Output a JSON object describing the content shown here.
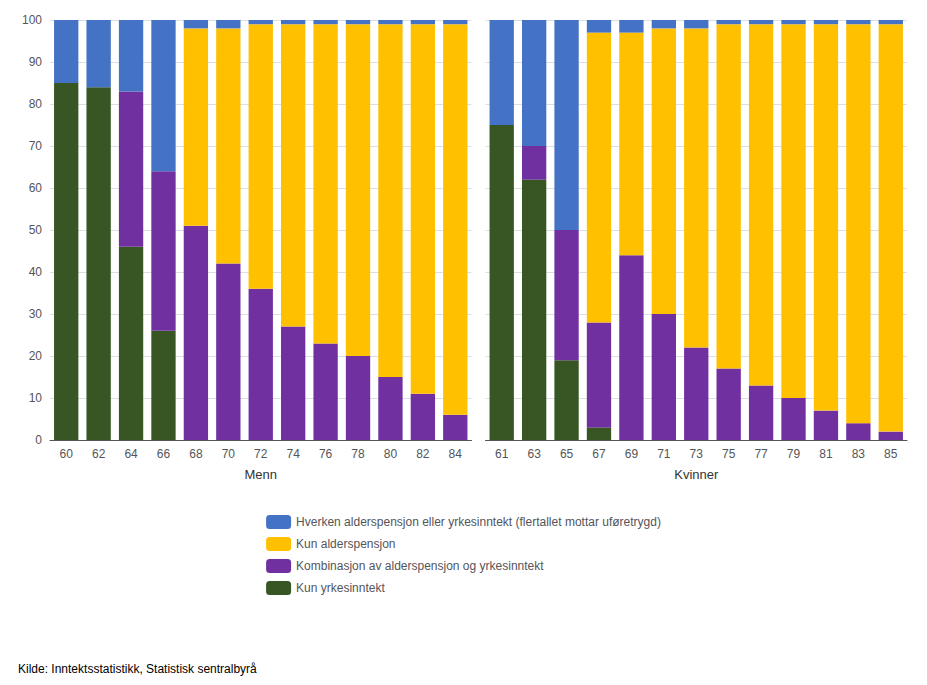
{
  "chart_data": [
    {
      "type": "bar",
      "stacked": true,
      "grid": true,
      "legend": "bottom",
      "xlabel": "Menn",
      "annotations": [
        "Kilde: Inntektsstatistikk, Statistisk sentralbyrå"
      ],
      "categories": [
        60,
        62,
        64,
        66,
        68,
        70,
        72,
        74,
        76,
        78,
        80,
        82,
        84
      ],
      "ylim": [
        0,
        100
      ],
      "yticks": [
        0,
        10,
        20,
        30,
        40,
        50,
        60,
        70,
        80,
        90,
        100
      ],
      "series": [
        {
          "name": "Kun yrkesinntekt",
          "color": "#375623",
          "values": [
            85,
            84,
            46,
            26,
            0,
            0,
            0,
            0,
            0,
            0,
            0,
            0,
            0
          ]
        },
        {
          "name": "Kombinasjon av alderspensjon og yrkesinntekt",
          "color": "#7030a0",
          "values": [
            0,
            0,
            37,
            38,
            51,
            42,
            36,
            27,
            23,
            20,
            15,
            11,
            6
          ]
        },
        {
          "name": "Kun alderspensjon",
          "color": "#ffc000",
          "values": [
            0,
            0,
            0,
            0,
            47,
            56,
            63,
            72,
            76,
            79,
            84,
            88,
            93
          ]
        },
        {
          "name": "Hverken alderspensjon eller yrkesinntekt (flertallet mottar uføretrygd)",
          "color": "#4472c4",
          "values": [
            15,
            16,
            17,
            36,
            2,
            2,
            1,
            1,
            1,
            1,
            1,
            1,
            1
          ]
        }
      ]
    },
    {
      "type": "bar",
      "stacked": true,
      "grid": true,
      "tick_labels": "x",
      "xlabel": "Kvinner",
      "categories": [
        61,
        63,
        65,
        67,
        69,
        71,
        73,
        75,
        77,
        79,
        81,
        83,
        85
      ],
      "ylim": [
        0,
        100
      ],
      "yticks": [
        0,
        10,
        20,
        30,
        40,
        50,
        60,
        70,
        80,
        90,
        100
      ],
      "series": [
        {
          "name": "Kun yrkesinntekt",
          "color": "#375623",
          "values": [
            75,
            62,
            19,
            3,
            0,
            0,
            0,
            0,
            0,
            0,
            0,
            0,
            0
          ]
        },
        {
          "name": "Kombinasjon av alderspensjon og yrkesinntekt",
          "color": "#7030a0",
          "values": [
            0,
            8,
            31,
            25,
            44,
            30,
            22,
            17,
            13,
            10,
            7,
            4,
            2
          ]
        },
        {
          "name": "Kun alderspensjon",
          "color": "#ffc000",
          "values": [
            0,
            0,
            0,
            69,
            53,
            68,
            76,
            82,
            86,
            89,
            92,
            95,
            97
          ]
        },
        {
          "name": "Hverken alderspensjon eller yrkesinntekt (flertallet mottar uføretrygd)",
          "color": "#4472c4",
          "values": [
            25,
            30,
            50,
            3,
            3,
            2,
            2,
            1,
            1,
            1,
            1,
            1,
            1
          ]
        }
      ]
    }
  ]
}
